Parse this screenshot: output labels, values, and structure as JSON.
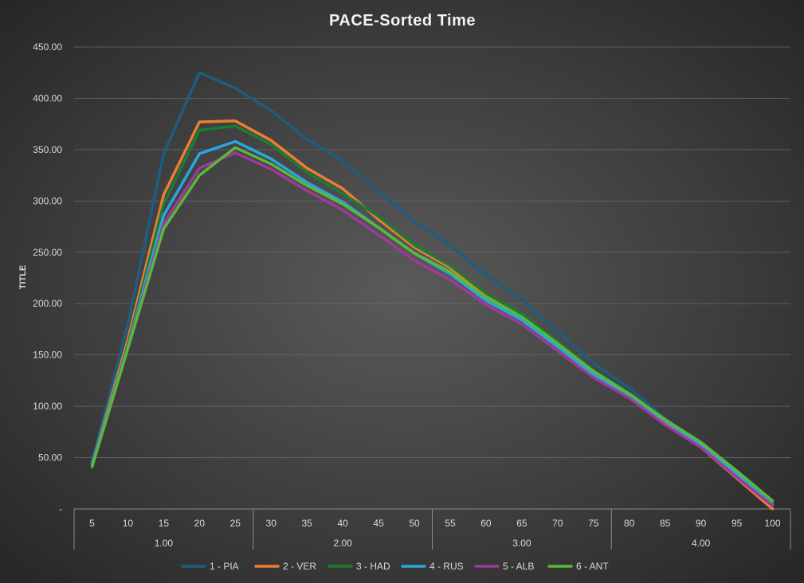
{
  "chart_data": {
    "type": "line",
    "title": "PACE-Sorted Time",
    "ylabel": "TITLE",
    "xlabel": "",
    "ylim": [
      0,
      450
    ],
    "y_ticks": [
      "-",
      "50.00",
      "100.00",
      "150.00",
      "200.00",
      "250.00",
      "300.00",
      "350.00",
      "400.00",
      "450.00"
    ],
    "categories": [
      "5",
      "10",
      "15",
      "20",
      "25",
      "30",
      "35",
      "40",
      "45",
      "50",
      "55",
      "60",
      "65",
      "70",
      "75",
      "80",
      "85",
      "90",
      "95",
      "100"
    ],
    "groups": [
      {
        "label": "1.00",
        "count": 5
      },
      {
        "label": "2.00",
        "count": 5
      },
      {
        "label": "3.00",
        "count": 5
      },
      {
        "label": "4.00",
        "count": 5
      }
    ],
    "legend_position": "bottom",
    "grid": true,
    "series": [
      {
        "name": "1 - PIA",
        "color": "#1f5c80",
        "values": [
          45,
          180,
          346,
          425,
          410,
          388,
          360,
          339,
          310,
          280,
          257,
          228,
          204,
          173,
          142,
          118,
          88,
          64,
          35,
          5
        ]
      },
      {
        "name": "2 - VER",
        "color": "#ed7d31",
        "values": [
          43,
          165,
          306,
          377,
          378,
          359,
          332,
          312,
          282,
          255,
          235,
          207,
          188,
          161,
          133,
          111,
          85,
          60,
          30,
          0
        ]
      },
      {
        "name": "3 - HAD",
        "color": "#1e7b34",
        "values": [
          42,
          160,
          297,
          369,
          373,
          355,
          328,
          307,
          285,
          257,
          237,
          210,
          190,
          163,
          135,
          113,
          87,
          64,
          35,
          6
        ]
      },
      {
        "name": "4 - RUS",
        "color": "#29a6e0",
        "values": [
          44,
          158,
          286,
          346,
          358,
          341,
          318,
          299,
          274,
          249,
          229,
          203,
          184,
          158,
          131,
          110,
          86,
          62,
          34,
          4
        ]
      },
      {
        "name": "5 - ALB",
        "color": "#9e3a98",
        "values": [
          42,
          157,
          278,
          332,
          347,
          331,
          310,
          291,
          267,
          242,
          223,
          199,
          180,
          154,
          128,
          108,
          82,
          60,
          31,
          3
        ]
      },
      {
        "name": "6 - ANT",
        "color": "#5ab83c",
        "values": [
          41,
          156,
          273,
          325,
          352,
          336,
          315,
          297,
          274,
          249,
          231,
          206,
          187,
          161,
          134,
          112,
          87,
          65,
          37,
          8
        ]
      }
    ]
  }
}
